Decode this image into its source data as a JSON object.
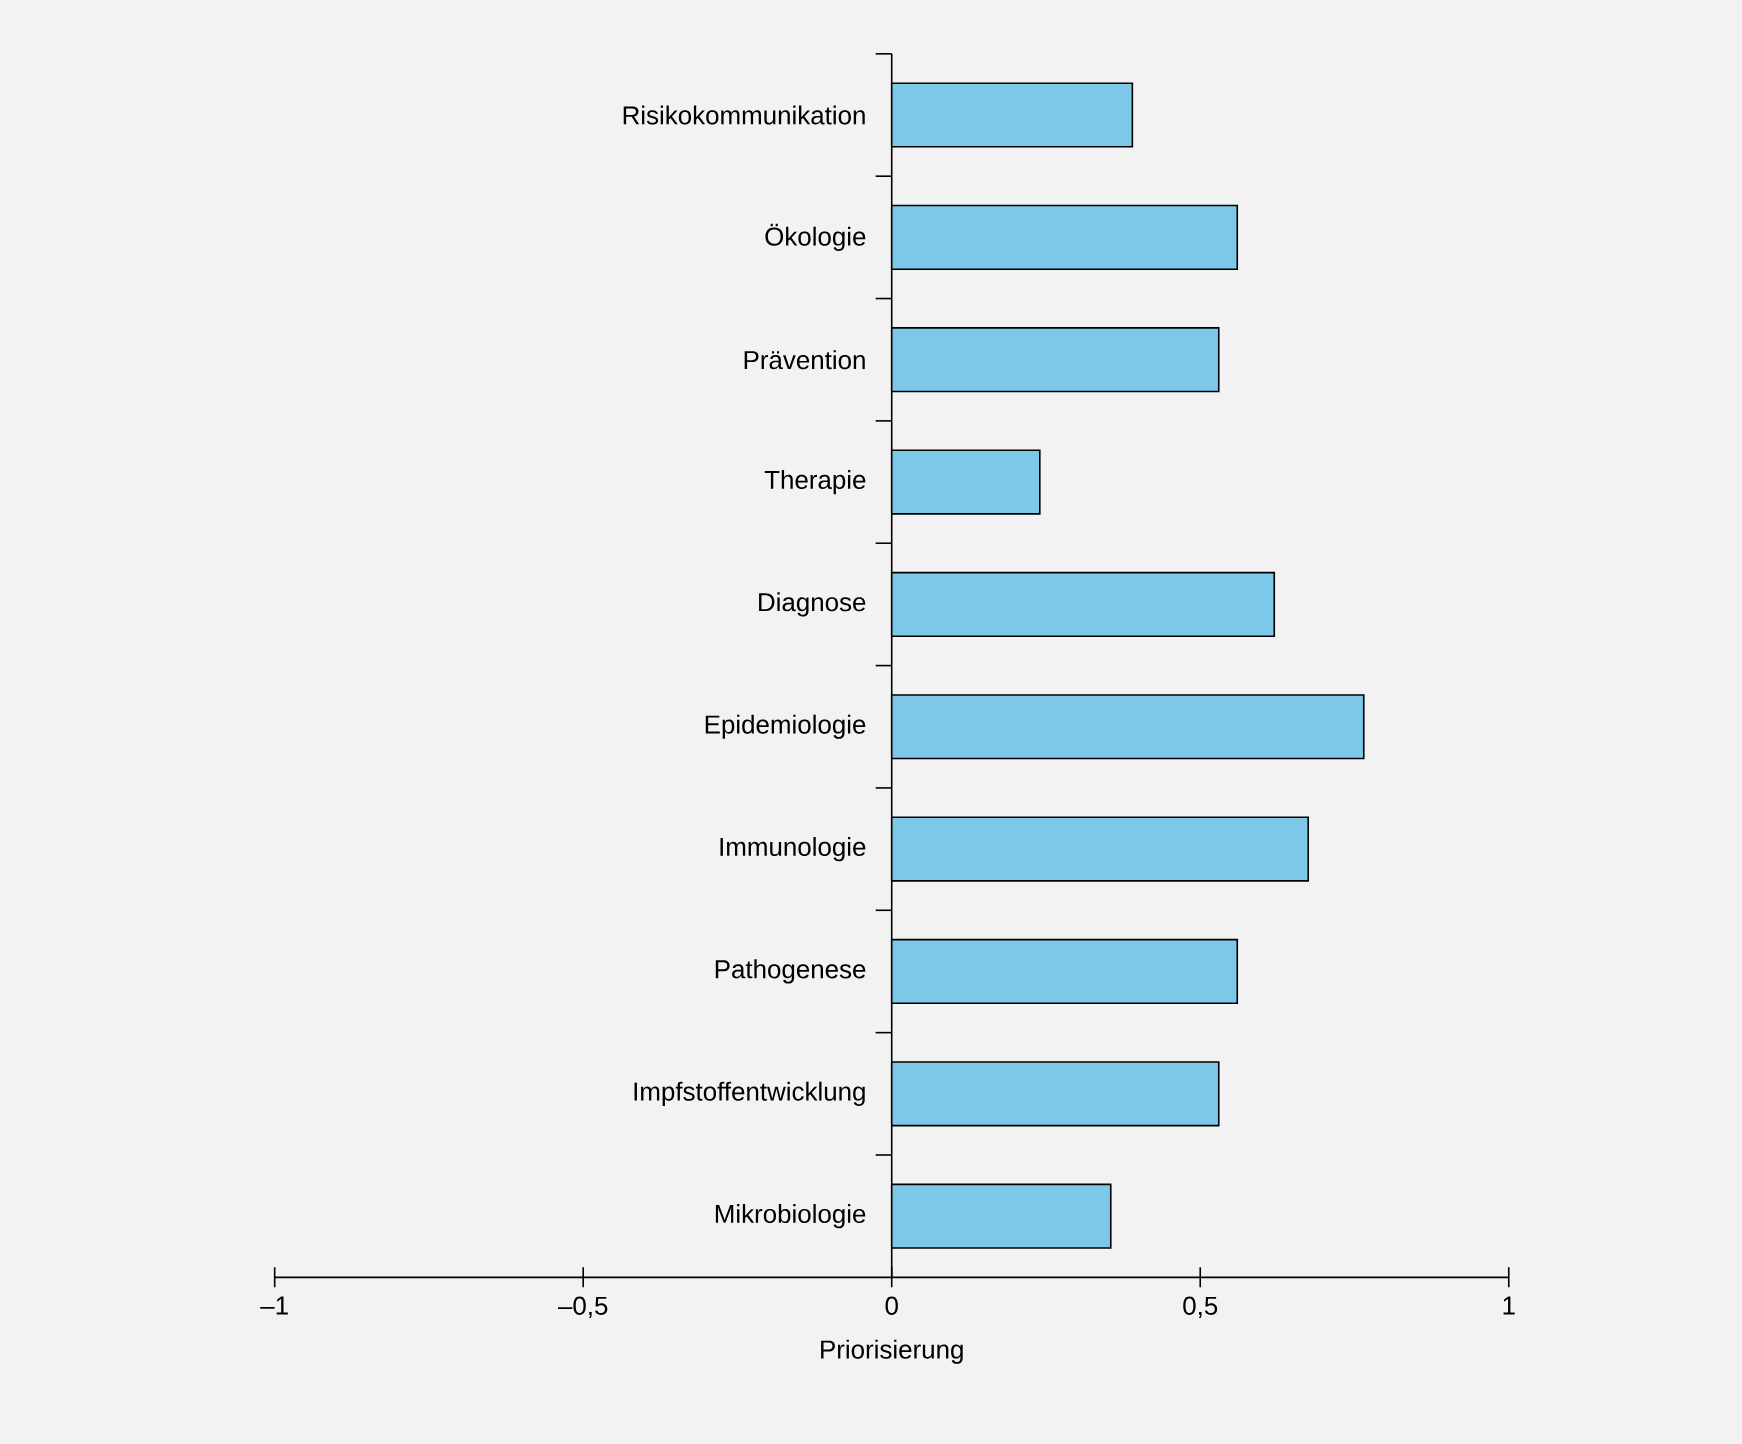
{
  "chart_data": {
    "type": "bar",
    "orientation": "horizontal",
    "xlabel": "Priorisierung",
    "categories": [
      "Risikokommunikation",
      "Ökologie",
      "Prävention",
      "Therapie",
      "Diagnose",
      "Epidemiologie",
      "Immunologie",
      "Pathogenese",
      "Impfstoffentwicklung",
      "Mikrobiologie"
    ],
    "values": [
      0.39,
      0.56,
      0.53,
      0.24,
      0.62,
      0.765,
      0.675,
      0.56,
      0.53,
      0.355
    ],
    "color": "#7dc8e8",
    "xlim": [
      -1,
      1
    ],
    "xticks": [
      {
        "value": -1,
        "label": "–1"
      },
      {
        "value": -0.5,
        "label": "–0,5"
      },
      0,
      {
        "value": 0.5,
        "label": "0,5"
      },
      1
    ]
  }
}
